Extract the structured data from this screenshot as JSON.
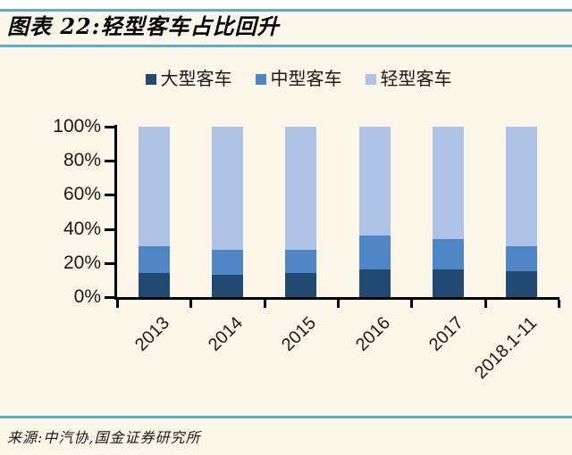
{
  "header": {
    "title": "图表 22:轻型客车占比回升"
  },
  "footer": {
    "source": "来源:中汽协,国金证券研究所"
  },
  "colors": {
    "background": "#FBF6E8",
    "top_strip": "#FFFFFF",
    "rule_blue": "#5BACD3",
    "axis": "#000000",
    "text": "#1A1A1A"
  },
  "chart_data": {
    "type": "bar",
    "stacked": true,
    "normalized_100_percent": true,
    "title": "轻型客车占比回升",
    "categories": [
      "2013",
      "2014",
      "2015",
      "2016",
      "2017",
      "2018.1-11"
    ],
    "series": [
      {
        "name": "大型客车",
        "color": "#214A73",
        "values": [
          14,
          13,
          14,
          16,
          16,
          15
        ]
      },
      {
        "name": "中型客车",
        "color": "#4E86C6",
        "values": [
          16,
          15,
          14,
          20,
          18,
          15
        ]
      },
      {
        "name": "轻型客车",
        "color": "#AFC3E6",
        "values": [
          70,
          72,
          72,
          64,
          66,
          70
        ]
      }
    ],
    "xlabel": "",
    "ylabel": "",
    "ylim": [
      0,
      100
    ],
    "ytick_labels": [
      "0%",
      "20%",
      "40%",
      "60%",
      "80%",
      "100%"
    ],
    "grid": false,
    "legend_position": "top",
    "x_labels_rotation_deg": -45
  }
}
